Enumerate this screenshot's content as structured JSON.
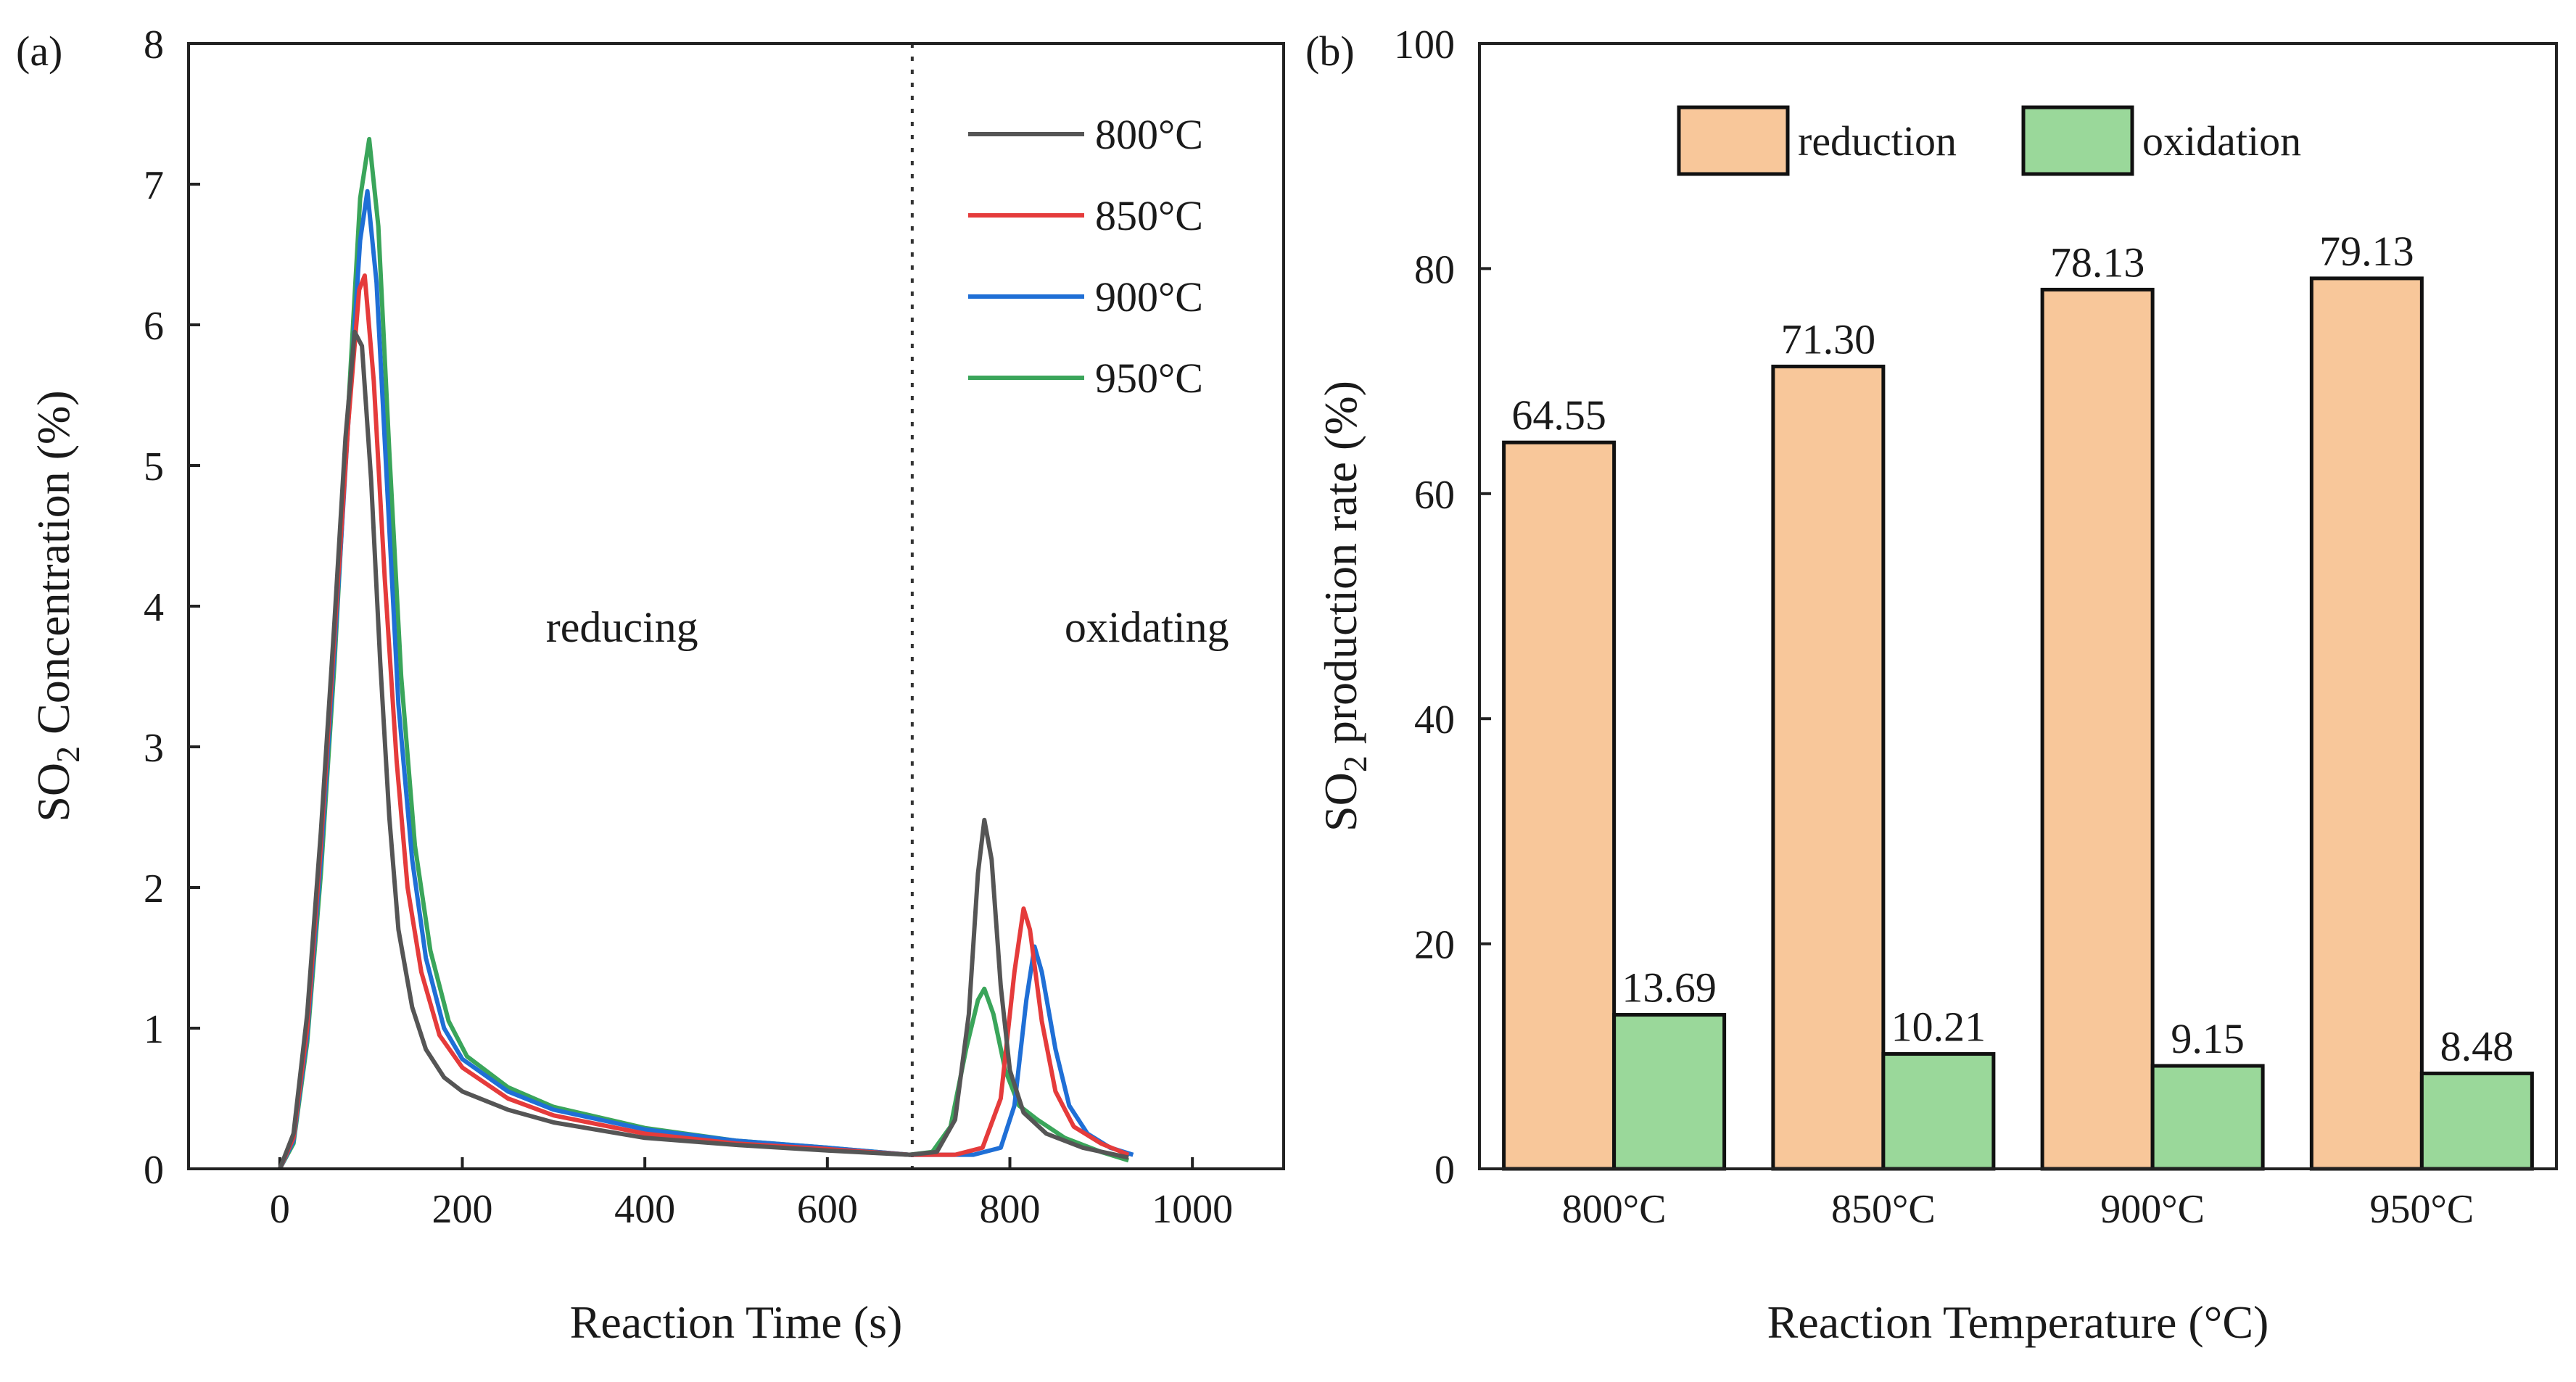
{
  "chart_data": [
    {
      "type": "line",
      "panel_label": "(a)",
      "xlabel": "Reaction Time (s)",
      "ylabel_main": "SO",
      "ylabel_sub": "2",
      "ylabel_rest": " Concentration (%)",
      "xlim": [
        -100,
        1100
      ],
      "ylim": [
        0,
        8
      ],
      "xticks": [
        0,
        200,
        400,
        600,
        800,
        1000
      ],
      "yticks": [
        0,
        1,
        2,
        3,
        4,
        5,
        6,
        7,
        8
      ],
      "xtick_labels": [
        "0",
        "200",
        "400",
        "600",
        "800",
        "1000"
      ],
      "ytick_labels": [
        "0",
        "1",
        "2",
        "3",
        "4",
        "5",
        "6",
        "7",
        "8"
      ],
      "divider_x": 693,
      "annotations": [
        {
          "text": "reducing",
          "x": 375,
          "y": 3.85
        },
        {
          "text": "oxidating",
          "x": 950,
          "y": 3.85
        }
      ],
      "legend_position": "top-right",
      "series": [
        {
          "name": "800°C",
          "color": "#555555",
          "points": [
            [
              0,
              0
            ],
            [
              15,
              0.25
            ],
            [
              30,
              1.1
            ],
            [
              45,
              2.4
            ],
            [
              60,
              3.9
            ],
            [
              72,
              5.2
            ],
            [
              82,
              5.95
            ],
            [
              90,
              5.85
            ],
            [
              100,
              4.9
            ],
            [
              110,
              3.6
            ],
            [
              120,
              2.5
            ],
            [
              130,
              1.7
            ],
            [
              145,
              1.15
            ],
            [
              160,
              0.85
            ],
            [
              180,
              0.65
            ],
            [
              200,
              0.55
            ],
            [
              250,
              0.42
            ],
            [
              300,
              0.33
            ],
            [
              400,
              0.22
            ],
            [
              500,
              0.17
            ],
            [
              600,
              0.13
            ],
            [
              690,
              0.1
            ],
            [
              720,
              0.12
            ],
            [
              740,
              0.35
            ],
            [
              755,
              1.1
            ],
            [
              765,
              2.1
            ],
            [
              772,
              2.48
            ],
            [
              780,
              2.2
            ],
            [
              790,
              1.3
            ],
            [
              800,
              0.7
            ],
            [
              815,
              0.4
            ],
            [
              840,
              0.25
            ],
            [
              880,
              0.15
            ],
            [
              930,
              0.08
            ]
          ]
        },
        {
          "name": "850°C",
          "color": "#e53b3b",
          "points": [
            [
              0,
              0
            ],
            [
              15,
              0.22
            ],
            [
              30,
              1.0
            ],
            [
              45,
              2.3
            ],
            [
              60,
              3.8
            ],
            [
              75,
              5.3
            ],
            [
              87,
              6.25
            ],
            [
              93,
              6.35
            ],
            [
              103,
              5.6
            ],
            [
              115,
              4.2
            ],
            [
              128,
              2.9
            ],
            [
              140,
              2.0
            ],
            [
              155,
              1.4
            ],
            [
              175,
              0.95
            ],
            [
              200,
              0.72
            ],
            [
              250,
              0.5
            ],
            [
              300,
              0.38
            ],
            [
              400,
              0.25
            ],
            [
              500,
              0.18
            ],
            [
              600,
              0.14
            ],
            [
              690,
              0.1
            ],
            [
              740,
              0.1
            ],
            [
              770,
              0.15
            ],
            [
              790,
              0.5
            ],
            [
              805,
              1.4
            ],
            [
              815,
              1.85
            ],
            [
              822,
              1.7
            ],
            [
              835,
              1.05
            ],
            [
              850,
              0.55
            ],
            [
              870,
              0.3
            ],
            [
              900,
              0.18
            ],
            [
              930,
              0.1
            ]
          ]
        },
        {
          "name": "900°C",
          "color": "#1f6fd6",
          "points": [
            [
              0,
              0
            ],
            [
              15,
              0.2
            ],
            [
              30,
              0.95
            ],
            [
              45,
              2.2
            ],
            [
              60,
              3.7
            ],
            [
              75,
              5.3
            ],
            [
              88,
              6.6
            ],
            [
              96,
              6.95
            ],
            [
              106,
              6.3
            ],
            [
              118,
              4.8
            ],
            [
              130,
              3.3
            ],
            [
              145,
              2.2
            ],
            [
              160,
              1.5
            ],
            [
              180,
              1.0
            ],
            [
              200,
              0.78
            ],
            [
              250,
              0.55
            ],
            [
              300,
              0.42
            ],
            [
              400,
              0.28
            ],
            [
              500,
              0.2
            ],
            [
              600,
              0.15
            ],
            [
              690,
              0.1
            ],
            [
              760,
              0.1
            ],
            [
              790,
              0.15
            ],
            [
              805,
              0.45
            ],
            [
              818,
              1.2
            ],
            [
              827,
              1.58
            ],
            [
              835,
              1.4
            ],
            [
              850,
              0.85
            ],
            [
              865,
              0.45
            ],
            [
              885,
              0.25
            ],
            [
              910,
              0.15
            ],
            [
              935,
              0.1
            ]
          ]
        },
        {
          "name": "950°C",
          "color": "#3aa55a",
          "points": [
            [
              0,
              0
            ],
            [
              15,
              0.18
            ],
            [
              30,
              0.9
            ],
            [
              45,
              2.1
            ],
            [
              60,
              3.6
            ],
            [
              75,
              5.4
            ],
            [
              88,
              6.9
            ],
            [
              98,
              7.32
            ],
            [
              108,
              6.7
            ],
            [
              120,
              5.1
            ],
            [
              133,
              3.5
            ],
            [
              148,
              2.3
            ],
            [
              165,
              1.55
            ],
            [
              185,
              1.05
            ],
            [
              205,
              0.8
            ],
            [
              250,
              0.58
            ],
            [
              300,
              0.44
            ],
            [
              400,
              0.29
            ],
            [
              500,
              0.2
            ],
            [
              600,
              0.15
            ],
            [
              690,
              0.1
            ],
            [
              715,
              0.12
            ],
            [
              735,
              0.3
            ],
            [
              752,
              0.85
            ],
            [
              765,
              1.2
            ],
            [
              772,
              1.28
            ],
            [
              782,
              1.1
            ],
            [
              795,
              0.7
            ],
            [
              810,
              0.45
            ],
            [
              830,
              0.35
            ],
            [
              860,
              0.22
            ],
            [
              900,
              0.12
            ],
            [
              930,
              0.06
            ]
          ]
        }
      ]
    },
    {
      "type": "bar",
      "panel_label": "(b)",
      "xlabel": "Reaction Temperature (°C)",
      "ylabel_main": "SO",
      "ylabel_sub": "2",
      "ylabel_rest": " production rate (%)",
      "categories": [
        "800°C",
        "850°C",
        "900°C",
        "950°C"
      ],
      "ylim": [
        0,
        100
      ],
      "yticks": [
        0,
        20,
        40,
        60,
        80,
        100
      ],
      "ytick_labels": [
        "0",
        "20",
        "40",
        "60",
        "80",
        "100"
      ],
      "legend_position": "top-center",
      "series": [
        {
          "name": "reduction",
          "color": "#f8c79a",
          "values": [
            64.55,
            71.3,
            78.13,
            79.13
          ],
          "labels": [
            "64.55",
            "71.30",
            "78.13",
            "79.13"
          ]
        },
        {
          "name": "oxidation",
          "color": "#9ad89a",
          "values": [
            13.69,
            10.21,
            9.15,
            8.48
          ],
          "labels": [
            "13.69",
            "10.21",
            "9.15",
            "8.48"
          ]
        }
      ]
    }
  ]
}
